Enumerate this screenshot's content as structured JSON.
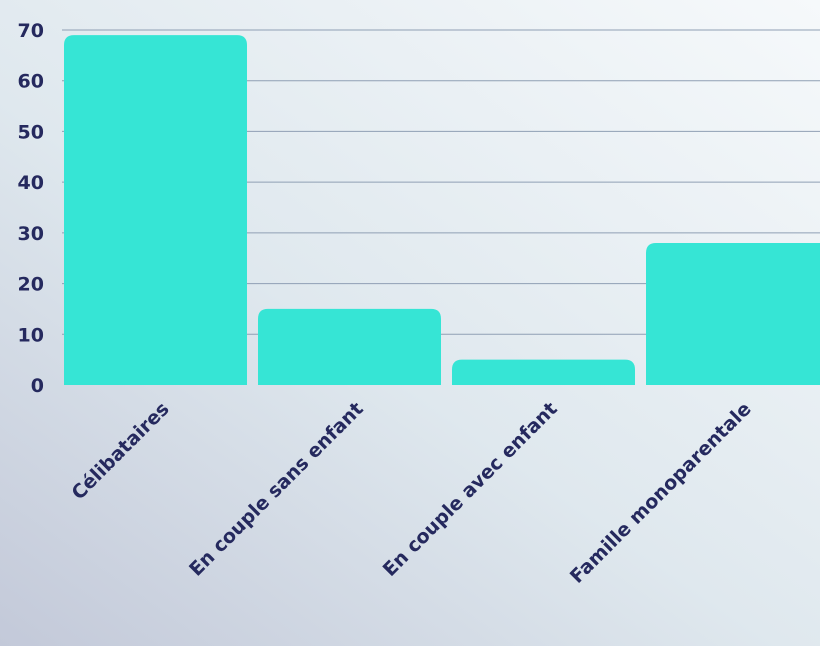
{
  "colors": {
    "bar": "#36e5d5",
    "text": "#25295e",
    "grid": "#8f9fb4"
  },
  "chart_data": {
    "type": "bar",
    "title": "",
    "xlabel": "",
    "ylabel": "",
    "categories": [
      "Célibataires",
      "En couple sans enfant",
      "En couple avec enfant",
      "Famille monoparentale"
    ],
    "values": [
      69,
      15,
      5,
      28
    ],
    "ylim": [
      0,
      70
    ],
    "yticks": [
      0,
      10,
      20,
      30,
      40,
      50,
      60,
      70
    ],
    "grid": true,
    "legend": "none"
  }
}
